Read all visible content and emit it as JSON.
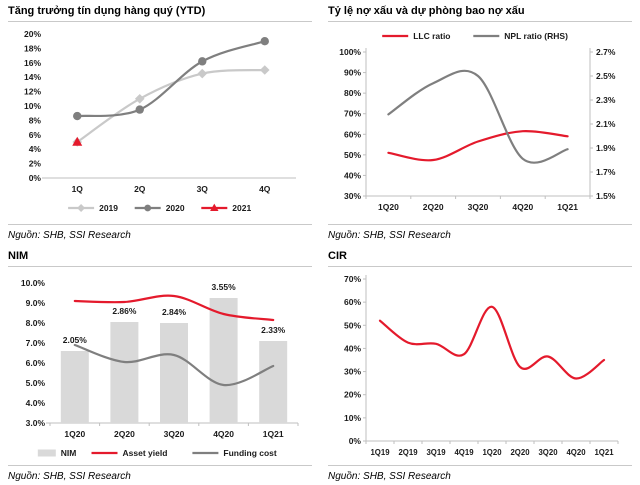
{
  "accent_colors": {
    "red": "#e41a2c",
    "dark_gray": "#7f7f7f",
    "light_gray": "#c9c9c9",
    "bar_gray": "#d9d9d9",
    "axis_gray": "#bfbfbf"
  },
  "chart_data": [
    {
      "id": "credit-growth",
      "type": "line",
      "title": "Tăng trưởng tín dụng hàng quý (YTD)",
      "source": "Nguồn: SHB, SSI Research",
      "categories": [
        "1Q",
        "2Q",
        "3Q",
        "4Q"
      ],
      "y_axis": {
        "min": 0,
        "max": 20,
        "step": 2,
        "decimals": 0,
        "suffix": "%"
      },
      "series": [
        {
          "name": "2019",
          "type": "line",
          "color": "#c9c9c9",
          "marker": "diamond",
          "values": [
            5,
            11,
            14.5,
            15
          ]
        },
        {
          "name": "2020",
          "type": "line",
          "color": "#7f7f7f",
          "marker": "circle",
          "values": [
            8.6,
            9.5,
            16.2,
            19
          ]
        },
        {
          "name": "2021",
          "type": "line",
          "color": "#e41a2c",
          "marker": "triangle",
          "values": [
            5,
            null,
            null,
            null
          ]
        }
      ],
      "legend_position": "bottom",
      "axes_style": {
        "left_line": false,
        "right_line": false,
        "bottom_line": true,
        "ticks": false
      },
      "grid": false
    },
    {
      "id": "npl-llc",
      "type": "line",
      "title": "Tỷ lệ nợ xấu và dự phòng bao nợ xấu",
      "source": "Nguồn: SHB, SSI Research",
      "categories": [
        "1Q20",
        "2Q20",
        "3Q20",
        "4Q20",
        "1Q21"
      ],
      "y_axis": {
        "min": 30,
        "max": 100,
        "step": 10,
        "decimals": 0,
        "suffix": "%"
      },
      "y2_axis": {
        "min": 1.5,
        "max": 2.7,
        "step": 0.2,
        "decimals": 1,
        "suffix": "%"
      },
      "series": [
        {
          "name": "LLC ratio",
          "type": "line",
          "color": "#e41a2c",
          "values": [
            51,
            47.5,
            56.5,
            61.5,
            59
          ]
        },
        {
          "name": "NPL ratio (RHS)",
          "type": "line",
          "color": "#7f7f7f",
          "axis": "right",
          "values": [
            2.18,
            2.44,
            2.5,
            1.81,
            1.89
          ]
        }
      ],
      "legend_position": "top",
      "axes_style": {
        "left_line": true,
        "right_line": true,
        "bottom_line": true,
        "ticks": true
      },
      "grid": false
    },
    {
      "id": "nim",
      "type": "bar-line",
      "title": "NIM",
      "source": "Nguồn: SHB, SSI Research",
      "categories": [
        "1Q20",
        "2Q20",
        "3Q20",
        "4Q20",
        "1Q21"
      ],
      "y_axis": {
        "min": 3,
        "max": 10,
        "step": 1,
        "decimals": 1,
        "suffix": "%"
      },
      "series": [
        {
          "name": "NIM",
          "type": "bar",
          "color": "#d9d9d9",
          "values": [
            2.05,
            2.86,
            2.84,
            3.55,
            2.33
          ],
          "data_labels": [
            "2.05%",
            "2.86%",
            "2.84%",
            "3.55%",
            "2.33%"
          ],
          "plotted_tops": [
            6.6,
            8.05,
            8.0,
            9.25,
            7.1
          ]
        },
        {
          "name": "Asset yield",
          "type": "line",
          "color": "#e41a2c",
          "values": [
            9.1,
            9.05,
            9.35,
            8.45,
            8.15
          ]
        },
        {
          "name": "Funding cost",
          "type": "line",
          "color": "#7f7f7f",
          "values": [
            6.9,
            6.05,
            6.4,
            4.9,
            5.85
          ]
        }
      ],
      "legend_position": "bottom",
      "axes_style": {
        "left_line": false,
        "right_line": false,
        "bottom_line": true,
        "ticks": true
      },
      "grid": false
    },
    {
      "id": "cir",
      "type": "line",
      "title": "CIR",
      "source": "Nguồn: SHB, SSI Research",
      "categories": [
        "1Q19",
        "2Q19",
        "3Q19",
        "4Q19",
        "1Q20",
        "2Q20",
        "3Q20",
        "4Q20",
        "1Q21"
      ],
      "y_axis": {
        "min": 0,
        "max": 70,
        "step": 10,
        "decimals": 0,
        "suffix": "%"
      },
      "series": [
        {
          "name": "CIR",
          "type": "line",
          "color": "#e41a2c",
          "values": [
            52,
            42.5,
            42,
            37.5,
            58,
            32,
            36.5,
            27,
            35
          ]
        }
      ],
      "legend_position": "none",
      "axes_style": {
        "left_line": true,
        "right_line": false,
        "bottom_line": true,
        "ticks": true
      },
      "grid": false
    }
  ]
}
